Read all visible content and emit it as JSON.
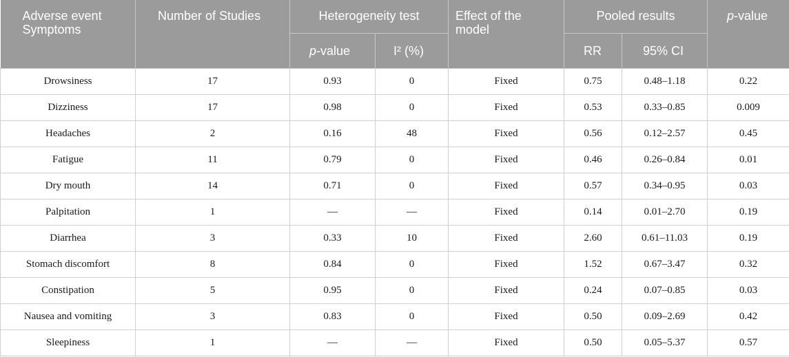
{
  "header": {
    "adverse_event_line1": "Adverse event",
    "adverse_event_line2": "Symptoms",
    "number_of_studies": "Number of Studies",
    "heterogeneity_test": "Heterogeneity test",
    "effect_line1": "Effect of the",
    "effect_line2": "model",
    "pooled_results": "Pooled results",
    "p_italic": "p",
    "p_suffix": "-value",
    "i2": "I² (%)",
    "rr": "RR",
    "ci": "95% CI"
  },
  "rows": [
    {
      "symptom": "Drowsiness",
      "studies": "17",
      "p_het": "0.93",
      "i2": "0",
      "effect": "Fixed",
      "rr": "0.75",
      "ci": "0.48–1.18",
      "p": "0.22"
    },
    {
      "symptom": "Dizziness",
      "studies": "17",
      "p_het": "0.98",
      "i2": "0",
      "effect": "Fixed",
      "rr": "0.53",
      "ci": "0.33–0.85",
      "p": "0.009"
    },
    {
      "symptom": "Headaches",
      "studies": "2",
      "p_het": "0.16",
      "i2": "48",
      "effect": "Fixed",
      "rr": "0.56",
      "ci": "0.12–2.57",
      "p": "0.45"
    },
    {
      "symptom": "Fatigue",
      "studies": "11",
      "p_het": "0.79",
      "i2": "0",
      "effect": "Fixed",
      "rr": "0.46",
      "ci": "0.26–0.84",
      "p": "0.01"
    },
    {
      "symptom": "Dry mouth",
      "studies": "14",
      "p_het": "0.71",
      "i2": "0",
      "effect": "Fixed",
      "rr": "0.57",
      "ci": "0.34–0.95",
      "p": "0.03"
    },
    {
      "symptom": "Palpitation",
      "studies": "1",
      "p_het": "—",
      "i2": "—",
      "effect": "Fixed",
      "rr": "0.14",
      "ci": "0.01–2.70",
      "p": "0.19"
    },
    {
      "symptom": "Diarrhea",
      "studies": "3",
      "p_het": "0.33",
      "i2": "10",
      "effect": "Fixed",
      "rr": "2.60",
      "ci": "0.61–11.03",
      "p": "0.19"
    },
    {
      "symptom": "Stomach discomfort",
      "studies": "8",
      "p_het": "0.84",
      "i2": "0",
      "effect": "Fixed",
      "rr": "1.52",
      "ci": "0.67–3.47",
      "p": "0.32"
    },
    {
      "symptom": "Constipation",
      "studies": "5",
      "p_het": "0.95",
      "i2": "0",
      "effect": "Fixed",
      "rr": "0.24",
      "ci": "0.07–0.85",
      "p": "0.03"
    },
    {
      "symptom": "Nausea and vomiting",
      "studies": "3",
      "p_het": "0.83",
      "i2": "0",
      "effect": "Fixed",
      "rr": "0.50",
      "ci": "0.09–2.69",
      "p": "0.42"
    },
    {
      "symptom": "Sleepiness",
      "studies": "1",
      "p_het": "—",
      "i2": "—",
      "effect": "Fixed",
      "rr": "0.50",
      "ci": "0.05–5.37",
      "p": "0.57"
    }
  ],
  "colors": {
    "header_bg": "#9b9b9b",
    "header_text": "#ffffff"
  }
}
